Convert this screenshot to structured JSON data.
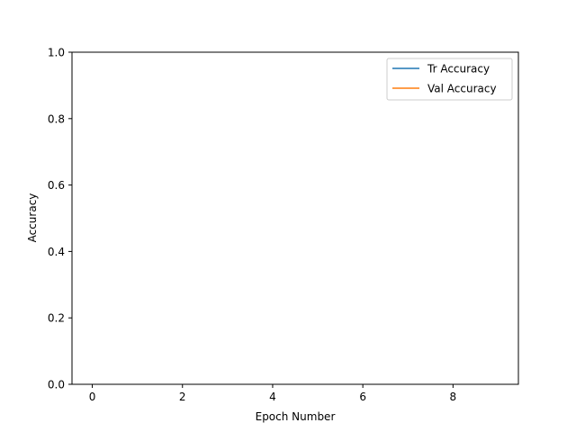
{
  "chart_data": {
    "type": "line",
    "title": "",
    "xlabel": "Epoch Number",
    "ylabel": "Accuracy",
    "xlim": [
      -0.45,
      9.45
    ],
    "ylim": [
      0,
      1
    ],
    "xticks": [
      0,
      2,
      4,
      6,
      8
    ],
    "xtick_labels": [
      "0",
      "2",
      "4",
      "6",
      "8"
    ],
    "yticks": [
      0,
      0.2,
      0.4,
      0.6,
      0.8,
      1.0
    ],
    "ytick_labels": [
      "0.0",
      "0.2",
      "0.4",
      "0.6",
      "0.8",
      "1.0"
    ],
    "grid": false,
    "legend_position": "upper right",
    "series": [
      {
        "name": "Tr Accuracy",
        "color": "#1f77b4",
        "x": [],
        "y": []
      },
      {
        "name": "Val Accuracy",
        "color": "#ff7f0e",
        "x": [],
        "y": []
      }
    ]
  }
}
